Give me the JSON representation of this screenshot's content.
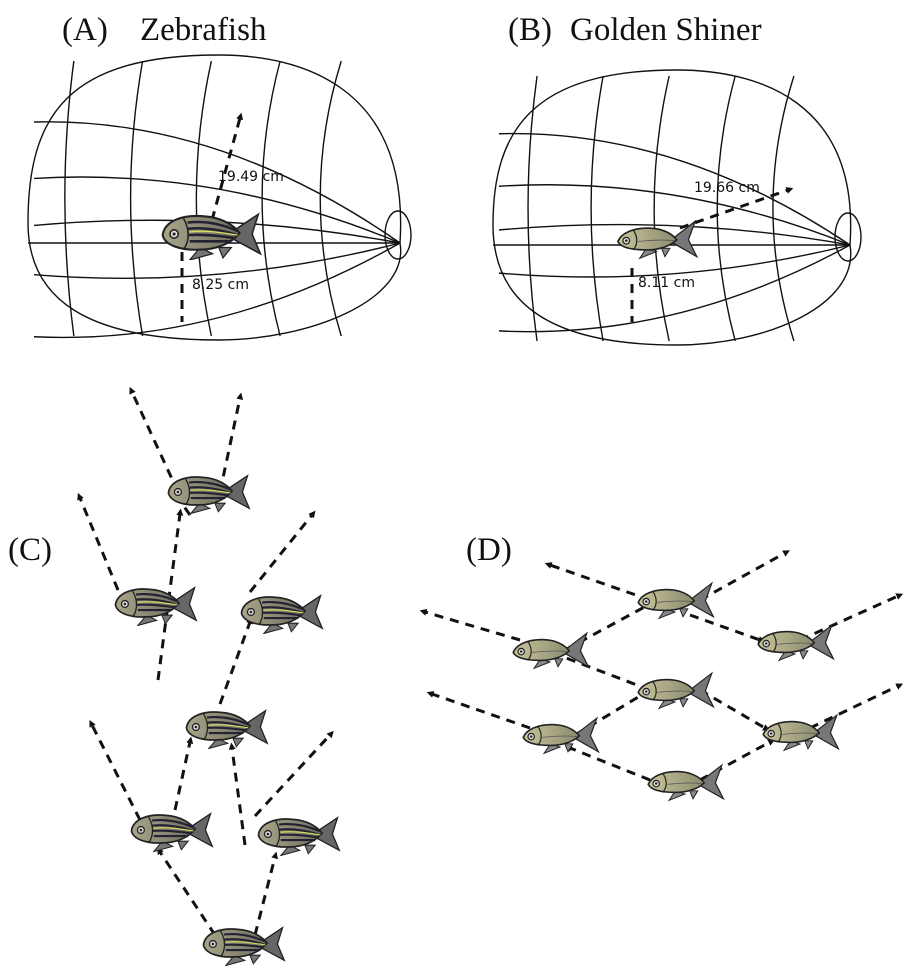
{
  "panels": [
    {
      "label": "(A)",
      "title": "Zebrafish",
      "distances": [
        "19.49 cm",
        "8.25 cm"
      ]
    },
    {
      "label": "(B)",
      "title": "Golden Shiner",
      "distances": [
        "19.66 cm",
        "8.11 cm"
      ]
    },
    {
      "label": "(C)"
    },
    {
      "label": "(D)"
    }
  ]
}
